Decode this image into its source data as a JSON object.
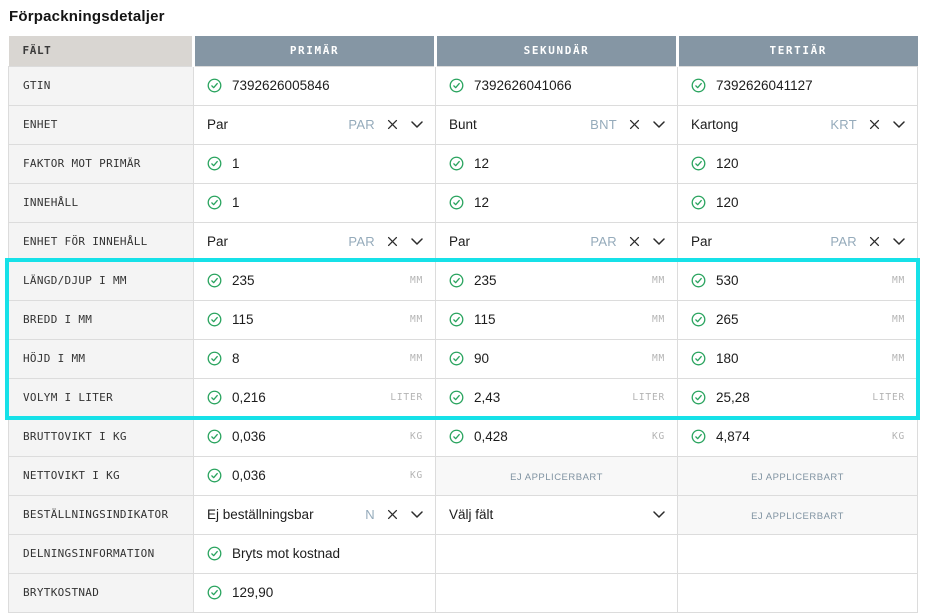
{
  "page_title": "Förpackningsdetaljer",
  "table": {
    "field_header": "FÄLT",
    "column_headers": [
      "PRIMÄR",
      "SEKUNDÄR",
      "TERTIÄR"
    ],
    "not_applicable_label": "EJ APPLICERBART",
    "rows": [
      {
        "field": "GTIN",
        "highlight": false,
        "cells": [
          {
            "type": "check",
            "value": "7392626005846"
          },
          {
            "type": "check",
            "value": "7392626041066"
          },
          {
            "type": "check",
            "value": "7392626041127"
          }
        ]
      },
      {
        "field": "ENHET",
        "highlight": false,
        "cells": [
          {
            "type": "select",
            "value": "Par",
            "code": "PAR"
          },
          {
            "type": "select",
            "value": "Bunt",
            "code": "BNT"
          },
          {
            "type": "select",
            "value": "Kartong",
            "code": "KRT"
          }
        ]
      },
      {
        "field": "FAKTOR MOT PRIMÄR",
        "highlight": false,
        "cells": [
          {
            "type": "check",
            "value": "1"
          },
          {
            "type": "check",
            "value": "12"
          },
          {
            "type": "check",
            "value": "120"
          }
        ]
      },
      {
        "field": "INNEHÅLL",
        "highlight": false,
        "cells": [
          {
            "type": "check",
            "value": "1"
          },
          {
            "type": "check",
            "value": "12"
          },
          {
            "type": "check",
            "value": "120"
          }
        ]
      },
      {
        "field": "ENHET FÖR INNEHÅLL",
        "highlight": false,
        "cells": [
          {
            "type": "select",
            "value": "Par",
            "code": "PAR"
          },
          {
            "type": "select",
            "value": "Par",
            "code": "PAR"
          },
          {
            "type": "select",
            "value": "Par",
            "code": "PAR"
          }
        ]
      },
      {
        "field": "LÄNGD/DJUP I MM",
        "highlight": true,
        "cells": [
          {
            "type": "check",
            "value": "235",
            "unit": "MM"
          },
          {
            "type": "check",
            "value": "235",
            "unit": "MM"
          },
          {
            "type": "check",
            "value": "530",
            "unit": "MM"
          }
        ]
      },
      {
        "field": "BREDD I MM",
        "highlight": true,
        "cells": [
          {
            "type": "check",
            "value": "115",
            "unit": "MM"
          },
          {
            "type": "check",
            "value": "115",
            "unit": "MM"
          },
          {
            "type": "check",
            "value": "265",
            "unit": "MM"
          }
        ]
      },
      {
        "field": "HÖJD I MM",
        "highlight": true,
        "cells": [
          {
            "type": "check",
            "value": "8",
            "unit": "MM"
          },
          {
            "type": "check",
            "value": "90",
            "unit": "MM"
          },
          {
            "type": "check",
            "value": "180",
            "unit": "MM"
          }
        ]
      },
      {
        "field": "VOLYM I LITER",
        "highlight": true,
        "cells": [
          {
            "type": "check",
            "value": "0,216",
            "unit": "LITER"
          },
          {
            "type": "check",
            "value": "2,43",
            "unit": "LITER"
          },
          {
            "type": "check",
            "value": "25,28",
            "unit": "LITER"
          }
        ]
      },
      {
        "field": "BRUTTOVIKT I KG",
        "highlight": false,
        "cells": [
          {
            "type": "check",
            "value": "0,036",
            "unit": "KG"
          },
          {
            "type": "check",
            "value": "0,428",
            "unit": "KG"
          },
          {
            "type": "check",
            "value": "4,874",
            "unit": "KG"
          }
        ]
      },
      {
        "field": "NETTOVIKT I KG",
        "highlight": false,
        "cells": [
          {
            "type": "check",
            "value": "0,036",
            "unit": "KG"
          },
          {
            "type": "na"
          },
          {
            "type": "na"
          }
        ]
      },
      {
        "field": "BESTÄLLNINGSINDIKATOR",
        "highlight": false,
        "cells": [
          {
            "type": "select",
            "value": "Ej beställningsbar",
            "code": "N"
          },
          {
            "type": "select",
            "value": "Välj fält",
            "clearable": false
          },
          {
            "type": "na"
          }
        ]
      },
      {
        "field": "DELNINGSINFORMATION",
        "highlight": false,
        "cells": [
          {
            "type": "check",
            "value": "Bryts mot kostnad"
          },
          {
            "type": "empty"
          },
          {
            "type": "empty"
          }
        ]
      },
      {
        "field": "BRYTKOSTNAD",
        "highlight": false,
        "cells": [
          {
            "type": "check",
            "value": "129,90"
          },
          {
            "type": "empty"
          },
          {
            "type": "empty"
          }
        ]
      }
    ]
  },
  "colors": {
    "check_green": "#2aa45f",
    "highlight_cyan": "#16e1e8",
    "header_slate": "#8596a4",
    "code_bluegray": "#95abbb"
  }
}
